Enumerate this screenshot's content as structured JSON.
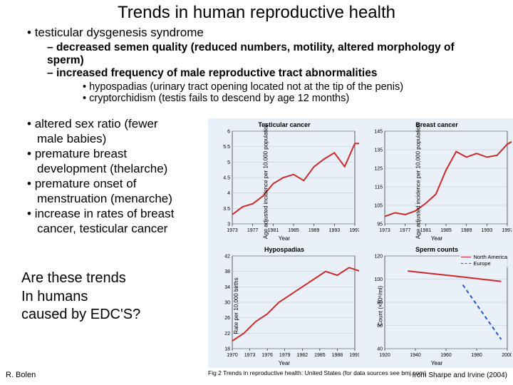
{
  "title": "Trends in human reproductive health",
  "top": {
    "l1": "testicular dysgenesis syndrome",
    "l2a": "decreased semen quality (reduced numbers, motility, altered morphology of sperm)",
    "l2b": "increased frequency of male reproductive tract abnormalities",
    "l3a": "hypospadias (urinary tract opening located not at the tip of the penis)",
    "l3b": "cryptorchidism (testis fails to descend by age 12 months)"
  },
  "left": {
    "b1a": "altered sex ratio (fewer",
    "b1b": "male babies)",
    "b2a": "premature breast",
    "b2b": "development (thelarche)",
    "b3a": "premature onset of",
    "b3b": "menstruation (menarche)",
    "b4a": "increase in rates of breast",
    "b4b": "cancer, testicular cancer"
  },
  "question": {
    "l1": "Are these trends",
    "l2": "In humans",
    "l3": "caused by EDC'S?"
  },
  "charts": {
    "testicular": {
      "title": "Testicular cancer",
      "ylab": "Age adjusted incidence per 10,000 population",
      "xlab": "Year",
      "x_ticks": [
        1973,
        1977,
        1981,
        1985,
        1989,
        1993,
        1997
      ],
      "ylim": [
        3.0,
        6.0
      ],
      "ytick_step": 0.5,
      "color": "#cc2a2a",
      "line_width": 2,
      "x": [
        1973,
        1975,
        1977,
        1979,
        1981,
        1983,
        1985,
        1987,
        1989,
        1991,
        1993,
        1995,
        1997,
        1999
      ],
      "y": [
        3.3,
        3.55,
        3.65,
        3.9,
        4.3,
        4.5,
        4.6,
        4.4,
        4.85,
        5.1,
        5.3,
        4.85,
        5.6,
        5.6
      ]
    },
    "breast": {
      "title": "Breast cancer",
      "ylab": "Age adjusted incidence per 10,000 population",
      "xlab": "Year",
      "x_ticks": [
        1973,
        1977,
        1981,
        1985,
        1989,
        1993,
        1997
      ],
      "ylim": [
        95,
        145
      ],
      "ytick_step": 10,
      "color": "#cc2a2a",
      "line_width": 2,
      "x": [
        1973,
        1975,
        1977,
        1979,
        1981,
        1983,
        1985,
        1987,
        1989,
        1991,
        1993,
        1995,
        1997,
        1999
      ],
      "y": [
        99,
        101,
        100,
        102,
        106,
        111,
        124,
        134,
        131,
        133,
        131,
        132,
        138,
        141
      ]
    },
    "hypospadias": {
      "title": "Hypospadias",
      "ylab": "Rate per 10,000 births",
      "xlab": "Year",
      "x_ticks": [
        1970,
        1973,
        1976,
        1979,
        1982,
        1985,
        1988,
        1991
      ],
      "ylim": [
        18,
        42
      ],
      "ytick_step": 4,
      "color": "#cc2a2a",
      "line_width": 2,
      "x": [
        1970,
        1972,
        1974,
        1976,
        1978,
        1980,
        1982,
        1984,
        1986,
        1988,
        1990,
        1992
      ],
      "y": [
        20,
        22,
        25,
        27,
        30,
        32,
        34,
        36,
        38,
        37,
        39,
        38
      ]
    },
    "sperm": {
      "title": "Sperm counts",
      "ylab": "Count (×10⁶/ml)",
      "xlab": "Year",
      "x_ticks": [
        1920,
        1940,
        1960,
        1980,
        2000
      ],
      "ylim": [
        40,
        120
      ],
      "ytick_step": 20,
      "series": [
        {
          "name": "North America",
          "color": "#cc2a2a",
          "dash": "none",
          "x": [
            1935,
            1970,
            1996
          ],
          "y": [
            107,
            102,
            98
          ]
        },
        {
          "name": "Europe",
          "color": "#2255cc",
          "dash": "5,4",
          "x": [
            1971,
            1996
          ],
          "y": [
            95,
            48
          ]
        }
      ]
    }
  },
  "legend": {
    "na": "North America",
    "eu": "Europe",
    "na_color": "#cc2a2a",
    "eu_color": "#2255cc"
  },
  "fig_caption": "Fig 2  Trends in reproductive health: United States (for data sources see bmj.com)",
  "footer_left": "R. Bolen",
  "footer_right": "from Sharpe and Irvine (2004)",
  "style": {
    "panel_bg": "#eaf0f8",
    "grid_color": "#b8c4d6",
    "axis_color": "#000000",
    "tick_font": 7
  }
}
